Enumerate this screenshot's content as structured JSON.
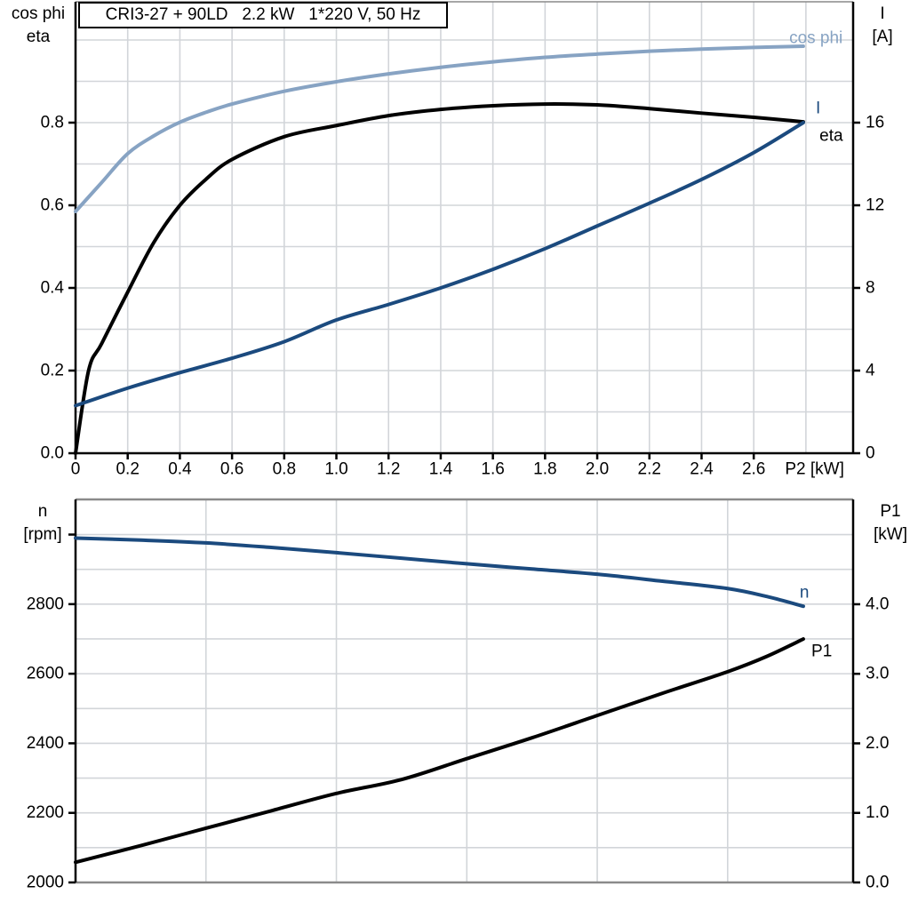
{
  "colors": {
    "dark_blue": "#1b4a7e",
    "light_blue": "#87a3c3",
    "black": "#000000",
    "grid": "#d2d5d9",
    "frame_gray": "#8a8a8a",
    "background": "#ffffff"
  },
  "title_box": {
    "text": "CRI3-27 + 90LD   2.2 kW   1*220 V, 50 Hz"
  },
  "chart_data": [
    {
      "id": "motor-electrical-curves",
      "type": "line",
      "title": "CRI3-27 + 90LD   2.2 kW   1*220 V, 50 Hz",
      "x_axis": {
        "label": "P2 [kW]",
        "range": [
          0,
          2.981
        ],
        "grid": [
          0.2,
          0.4,
          0.6,
          0.8,
          1.0,
          1.2,
          1.4,
          1.6,
          1.8,
          2.0,
          2.2,
          2.4,
          2.6,
          2.8
        ],
        "ticks": [
          {
            "v": 0,
            "label": "0"
          },
          {
            "v": 0.2,
            "label": "0.2"
          },
          {
            "v": 0.4,
            "label": "0.4"
          },
          {
            "v": 0.6,
            "label": "0.6"
          },
          {
            "v": 0.8,
            "label": "0.8"
          },
          {
            "v": 1.0,
            "label": "1.0"
          },
          {
            "v": 1.2,
            "label": "1.2"
          },
          {
            "v": 1.4,
            "label": "1.4"
          },
          {
            "v": 1.6,
            "label": "1.6"
          },
          {
            "v": 1.8,
            "label": "1.8"
          },
          {
            "v": 2.0,
            "label": "2.0"
          },
          {
            "v": 2.2,
            "label": "2.2"
          },
          {
            "v": 2.4,
            "label": "2.4"
          },
          {
            "v": 2.6,
            "label": "2.6"
          }
        ],
        "end_label_x": 2.72
      },
      "left_axis": {
        "label_lines": [
          "cos phi",
          "eta"
        ],
        "range": [
          0,
          1.0925
        ],
        "grid": [
          0.1,
          0.2,
          0.3,
          0.4,
          0.5,
          0.6,
          0.7,
          0.8,
          0.9,
          1.0
        ],
        "ticks": [
          {
            "v": 0.0,
            "label": "0.0"
          },
          {
            "v": 0.2,
            "label": "0.2"
          },
          {
            "v": 0.4,
            "label": "0.4"
          },
          {
            "v": 0.6,
            "label": "0.6"
          },
          {
            "v": 0.8,
            "label": "0.8"
          }
        ]
      },
      "right_axis": {
        "label_lines": [
          "I",
          "[A]"
        ],
        "range": [
          0,
          21.85
        ],
        "ticks": [
          {
            "v": 0,
            "label": "0"
          },
          {
            "v": 4,
            "label": "4"
          },
          {
            "v": 8,
            "label": "8"
          },
          {
            "v": 12,
            "label": "12"
          },
          {
            "v": 16,
            "label": "16"
          }
        ]
      },
      "series": [
        {
          "name": "cos phi",
          "axis": "left",
          "color_key": "light_blue",
          "points": [
            [
              0,
              0.585
            ],
            [
              0.1,
              0.655
            ],
            [
              0.2,
              0.725
            ],
            [
              0.3,
              0.768
            ],
            [
              0.4,
              0.801
            ],
            [
              0.5,
              0.825
            ],
            [
              0.6,
              0.845
            ],
            [
              0.8,
              0.876
            ],
            [
              1.0,
              0.899
            ],
            [
              1.2,
              0.918
            ],
            [
              1.4,
              0.934
            ],
            [
              1.6,
              0.947
            ],
            [
              1.8,
              0.958
            ],
            [
              2.0,
              0.966
            ],
            [
              2.2,
              0.973
            ],
            [
              2.4,
              0.978
            ],
            [
              2.6,
              0.982
            ],
            [
              2.79,
              0.985
            ]
          ]
        },
        {
          "name": "eta",
          "axis": "left",
          "color_key": "black",
          "points": [
            [
              0,
              0
            ],
            [
              0.05,
              0.2
            ],
            [
              0.1,
              0.265
            ],
            [
              0.2,
              0.39
            ],
            [
              0.3,
              0.51
            ],
            [
              0.4,
              0.6
            ],
            [
              0.5,
              0.663
            ],
            [
              0.6,
              0.711
            ],
            [
              0.8,
              0.766
            ],
            [
              1.0,
              0.793
            ],
            [
              1.2,
              0.817
            ],
            [
              1.4,
              0.832
            ],
            [
              1.6,
              0.841
            ],
            [
              1.8,
              0.845
            ],
            [
              2.0,
              0.843
            ],
            [
              2.2,
              0.834
            ],
            [
              2.4,
              0.823
            ],
            [
              2.6,
              0.813
            ],
            [
              2.79,
              0.802
            ]
          ]
        },
        {
          "name": "I",
          "axis": "right",
          "color_key": "dark_blue",
          "points": [
            [
              0,
              2.3
            ],
            [
              0.2,
              3.15
            ],
            [
              0.4,
              3.9
            ],
            [
              0.6,
              4.6
            ],
            [
              0.8,
              5.4
            ],
            [
              1.0,
              6.45
            ],
            [
              1.2,
              7.2
            ],
            [
              1.4,
              8.0
            ],
            [
              1.6,
              8.9
            ],
            [
              1.8,
              9.9
            ],
            [
              2.0,
              11.0
            ],
            [
              2.2,
              12.1
            ],
            [
              2.4,
              13.25
            ],
            [
              2.6,
              14.55
            ],
            [
              2.79,
              16.0
            ]
          ]
        }
      ],
      "annotations": [
        {
          "text": "cos phi",
          "axis": "left",
          "x": 2.736,
          "y": 1.004,
          "color_key": "light_blue"
        },
        {
          "text": "I",
          "axis": "left",
          "x": 2.838,
          "y": 0.834,
          "color_key": "dark_blue"
        },
        {
          "text": "eta",
          "axis": "left",
          "x": 2.852,
          "y": 0.768,
          "color_key": "black"
        }
      ]
    },
    {
      "id": "speed-power-curves",
      "type": "line",
      "x_axis": {
        "label": "",
        "range": [
          0,
          2.981
        ],
        "grid": [
          0.5,
          1.0,
          1.5,
          2.0,
          2.5
        ],
        "ticks": []
      },
      "left_axis": {
        "label_lines": [
          "n",
          "[rpm]"
        ],
        "range": [
          2000,
          3101
        ],
        "grid": [
          2100,
          2200,
          2300,
          2400,
          2500,
          2600,
          2700,
          2800,
          2900,
          3000
        ],
        "ticks": [
          {
            "v": 2000,
            "label": "2000"
          },
          {
            "v": 2200,
            "label": "2200"
          },
          {
            "v": 2400,
            "label": "2400"
          },
          {
            "v": 2600,
            "label": "2600"
          },
          {
            "v": 2800,
            "label": "2800"
          },
          {
            "v": 3000,
            "label": ""
          }
        ]
      },
      "right_axis": {
        "label_lines": [
          "P1",
          "[kW]"
        ],
        "range": [
          0,
          5.507
        ],
        "ticks": [
          {
            "v": 0,
            "label": "0.0"
          },
          {
            "v": 1,
            "label": "1.0"
          },
          {
            "v": 2,
            "label": "2.0"
          },
          {
            "v": 3,
            "label": "3.0"
          },
          {
            "v": 4,
            "label": "4.0"
          }
        ]
      },
      "series": [
        {
          "name": "n",
          "axis": "left",
          "color_key": "dark_blue",
          "points": [
            [
              0,
              2990
            ],
            [
              0.25,
              2984
            ],
            [
              0.5,
              2976
            ],
            [
              0.75,
              2963
            ],
            [
              1.0,
              2948
            ],
            [
              1.25,
              2932
            ],
            [
              1.5,
              2916
            ],
            [
              1.75,
              2901
            ],
            [
              2.0,
              2886
            ],
            [
              2.25,
              2866
            ],
            [
              2.5,
              2845
            ],
            [
              2.65,
              2822
            ],
            [
              2.79,
              2794
            ]
          ]
        },
        {
          "name": "P1",
          "axis": "right",
          "color_key": "black",
          "points": [
            [
              0,
              0.29
            ],
            [
              0.25,
              0.53
            ],
            [
              0.5,
              0.78
            ],
            [
              0.75,
              1.03
            ],
            [
              1.0,
              1.28
            ],
            [
              1.25,
              1.48
            ],
            [
              1.5,
              1.78
            ],
            [
              1.75,
              2.08
            ],
            [
              2.0,
              2.4
            ],
            [
              2.25,
              2.72
            ],
            [
              2.5,
              3.03
            ],
            [
              2.65,
              3.25
            ],
            [
              2.79,
              3.5
            ]
          ]
        }
      ],
      "annotations": [
        {
          "text": "n",
          "axis": "left",
          "x": 2.776,
          "y": 2833,
          "color_key": "dark_blue"
        },
        {
          "text": "P1",
          "axis": "right",
          "x": 2.821,
          "y": 3.32,
          "color_key": "black"
        }
      ]
    }
  ]
}
